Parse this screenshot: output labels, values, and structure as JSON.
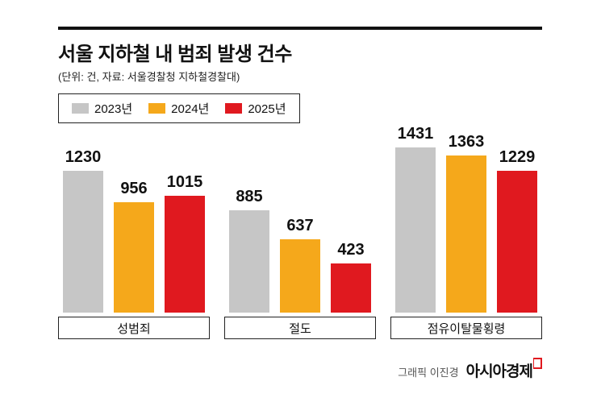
{
  "header": {
    "title": "서울 지하철 내 범죄 발생 건수",
    "subtitle": "(단위: 건, 자료: 서울경찰청 지하철경찰대)"
  },
  "legend": {
    "items": [
      {
        "label": "2023년",
        "color": "#c6c6c6"
      },
      {
        "label": "2024년",
        "color": "#f5a81b"
      },
      {
        "label": "2025년",
        "color": "#e0191f"
      }
    ]
  },
  "chart_data": {
    "type": "bar",
    "title": "서울 지하철 내 범죄 발생 건수",
    "subtitle": "(단위: 건, 자료: 서울경찰청 지하철경찰대)",
    "categories": [
      "성범죄",
      "절도",
      "점유이탈물횡령"
    ],
    "series": [
      {
        "name": "2023년",
        "color": "#c6c6c6",
        "values": [
          1230,
          885,
          1431
        ]
      },
      {
        "name": "2024년",
        "color": "#f5a81b",
        "values": [
          956,
          637,
          1363
        ]
      },
      {
        "name": "2025년",
        "color": "#e0191f",
        "values": [
          1015,
          423,
          1229
        ]
      }
    ],
    "ylim": [
      0,
      1431
    ],
    "grid": false,
    "legend_position": "top-left",
    "value_labels": true
  },
  "footer": {
    "credit": "그래픽 이진경",
    "brand": "아시아경제"
  }
}
